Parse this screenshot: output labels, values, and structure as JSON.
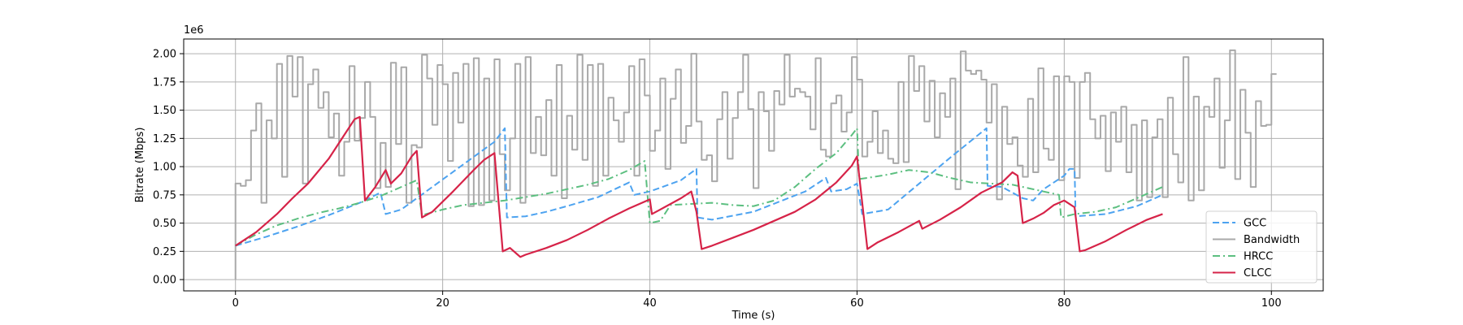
{
  "chart_data": {
    "type": "line",
    "xlabel": "Time (s)",
    "ylabel": "Bitrate (Mbps)",
    "y_offset_label": "1e6",
    "xlim": [
      -5,
      105
    ],
    "ylim": [
      -0.1,
      2.13
    ],
    "x_ticks": [
      0,
      20,
      40,
      60,
      80,
      100
    ],
    "y_ticks": [
      0.0,
      0.25,
      0.5,
      0.75,
      1.0,
      1.25,
      1.5,
      1.75,
      2.0
    ],
    "x_tick_labels": [
      "0",
      "20",
      "40",
      "60",
      "80",
      "100"
    ],
    "y_tick_labels": [
      "0.00",
      "0.25",
      "0.50",
      "0.75",
      "1.00",
      "1.25",
      "1.50",
      "1.75",
      "2.00"
    ],
    "grid": true,
    "legend_position": "bottom-right",
    "series": [
      {
        "name": "GCC",
        "color": "#4da3f0",
        "style": "dashed",
        "x": [
          0,
          3,
          6,
          9,
          12,
          14,
          14.5,
          16,
          19,
          22,
          25,
          26,
          26.2,
          28,
          30,
          32,
          35,
          38,
          38.5,
          40,
          43,
          44.5,
          44.6,
          46,
          50,
          55,
          57,
          57.5,
          59,
          60,
          60.5,
          63,
          66,
          69,
          72.5,
          72.6,
          74,
          76,
          77,
          78,
          80,
          80.5,
          81,
          81.1,
          84,
          87,
          89.5
        ],
        "y": [
          0.3,
          0.38,
          0.47,
          0.57,
          0.68,
          0.77,
          0.58,
          0.62,
          0.82,
          1.02,
          1.22,
          1.34,
          0.55,
          0.56,
          0.6,
          0.65,
          0.73,
          0.86,
          0.75,
          0.78,
          0.88,
          0.98,
          0.55,
          0.53,
          0.6,
          0.78,
          0.9,
          0.78,
          0.8,
          0.85,
          0.58,
          0.62,
          0.85,
          1.08,
          1.34,
          0.83,
          0.82,
          0.72,
          0.7,
          0.8,
          0.92,
          0.98,
          0.98,
          0.56,
          0.58,
          0.65,
          0.75
        ]
      },
      {
        "name": "Bandwidth",
        "color": "#a9a9a9",
        "style": "step",
        "x": [
          0,
          0.5,
          1,
          1.5,
          2,
          2.5,
          3,
          3.5,
          4,
          4.5,
          5,
          5.5,
          6,
          6.5,
          7,
          7.5,
          8,
          8.5,
          9,
          9.5,
          10,
          10.5,
          11,
          11.5,
          12,
          12.5,
          13,
          13.5,
          14,
          14.5,
          15,
          15.5,
          16,
          16.5,
          17,
          17.5,
          18,
          18.5,
          19,
          19.5,
          20,
          20.5,
          21,
          21.5,
          22,
          22.5,
          23,
          23.5,
          24,
          24.5,
          25,
          25.5,
          26,
          26.5,
          27,
          27.5,
          28,
          28.5,
          29,
          29.5,
          30,
          30.5,
          31,
          31.5,
          32,
          32.5,
          33,
          33.5,
          34,
          34.5,
          35,
          35.5,
          36,
          36.5,
          37,
          37.5,
          38,
          38.5,
          39,
          39.5,
          40,
          40.5,
          41,
          41.5,
          42,
          42.5,
          43,
          43.5,
          44,
          44.5,
          45,
          45.5,
          46,
          46.5,
          47,
          47.5,
          48,
          48.5,
          49,
          49.5,
          50,
          50.5,
          51,
          51.5,
          52,
          52.5,
          53,
          53.5,
          54,
          54.5,
          55,
          55.5,
          56,
          56.5,
          57,
          57.5,
          58,
          58.5,
          59,
          59.5,
          60,
          60.5,
          61,
          61.5,
          62,
          62.5,
          63,
          63.5,
          64,
          64.5,
          65,
          65.5,
          66,
          66.5,
          67,
          67.5,
          68,
          68.5,
          69,
          69.5,
          70,
          70.5,
          71,
          71.5,
          72,
          72.5,
          73,
          73.5,
          74,
          74.5,
          75,
          75.5,
          76,
          76.5,
          77,
          77.5,
          78,
          78.5,
          79,
          79.5,
          80,
          80.5,
          81,
          81.5,
          82,
          82.5,
          83,
          83.5,
          84,
          84.5,
          85,
          85.5,
          86,
          86.5,
          87,
          87.5,
          88,
          88.5,
          89,
          89.5,
          90,
          90.5,
          91,
          91.5,
          92,
          92.5,
          93,
          93.5,
          94,
          94.5,
          95,
          95.5,
          96,
          96.5,
          97,
          97.5,
          98,
          98.5,
          99,
          99.5,
          100,
          100.5
        ],
        "y": [
          0.85,
          0.83,
          0.88,
          1.32,
          1.56,
          0.68,
          1.41,
          1.25,
          1.91,
          0.91,
          1.98,
          1.62,
          1.97,
          0.85,
          1.73,
          1.86,
          1.52,
          1.66,
          1.26,
          1.47,
          0.92,
          1.22,
          1.89,
          1.23,
          1.43,
          1.75,
          1.44,
          0.81,
          1.21,
          0.82,
          1.92,
          1.2,
          1.88,
          0.68,
          1.19,
          1.17,
          1.99,
          1.78,
          1.37,
          1.9,
          1.73,
          1.05,
          1.83,
          1.39,
          1.91,
          0.65,
          1.96,
          0.66,
          1.78,
          0.7,
          1.95,
          1.11,
          0.79,
          1.25,
          1.91,
          0.68,
          1.97,
          1.12,
          1.44,
          1.1,
          1.59,
          0.92,
          1.9,
          0.72,
          1.45,
          1.15,
          1.99,
          1.06,
          1.9,
          0.83,
          1.91,
          0.92,
          1.61,
          1.41,
          1.22,
          1.48,
          1.89,
          0.92,
          1.95,
          1.63,
          1.14,
          1.32,
          1.78,
          0.98,
          1.6,
          1.86,
          1.21,
          1.36,
          2.0,
          1.4,
          1.06,
          1.1,
          0.87,
          1.42,
          1.66,
          1.07,
          1.43,
          1.66,
          1.99,
          1.51,
          0.81,
          1.66,
          1.49,
          1.14,
          1.67,
          1.55,
          1.99,
          1.62,
          1.69,
          1.66,
          1.62,
          1.33,
          1.96,
          1.15,
          1.09,
          1.56,
          1.63,
          1.31,
          1.48,
          1.97,
          1.77,
          1.09,
          1.22,
          1.49,
          1.12,
          1.32,
          1.07,
          1.03,
          1.75,
          1.04,
          1.98,
          1.67,
          1.89,
          1.4,
          1.76,
          1.26,
          1.65,
          1.44,
          1.78,
          0.8,
          2.02,
          1.85,
          1.82,
          1.85,
          1.77,
          1.39,
          1.73,
          0.71,
          1.53,
          1.2,
          1.26,
          1.01,
          0.91,
          1.6,
          0.95,
          1.87,
          1.16,
          1.06,
          1.8,
          0.88,
          1.8,
          1.75,
          0.9,
          1.75,
          1.83,
          1.42,
          1.25,
          1.45,
          0.96,
          1.48,
          1.22,
          1.53,
          0.95,
          1.37,
          0.7,
          1.41,
          0.73,
          1.26,
          1.42,
          0.73,
          1.61,
          1.11,
          0.86,
          1.97,
          0.7,
          1.62,
          0.79,
          1.53,
          1.44,
          1.78,
          0.99,
          1.41,
          2.03,
          0.89,
          1.68,
          1.3,
          0.82,
          1.58,
          1.36,
          1.37,
          1.82,
          1.82
        ]
      },
      {
        "name": "HRCC",
        "color": "#5cbf80",
        "style": "dashdot",
        "x": [
          0,
          2,
          4,
          6,
          8,
          10,
          12,
          14,
          16,
          17.5,
          18,
          20,
          22,
          24,
          26,
          28,
          30,
          32,
          34,
          36,
          38,
          39.5,
          40,
          41,
          42,
          44,
          46,
          48,
          50,
          52,
          54,
          56,
          58,
          59.5,
          60,
          60.2,
          61,
          63,
          65,
          67,
          69,
          71,
          73,
          75,
          77,
          79.5,
          79.7,
          81,
          83,
          85,
          87,
          89.5
        ],
        "y": [
          0.3,
          0.4,
          0.48,
          0.54,
          0.59,
          0.63,
          0.68,
          0.74,
          0.82,
          0.88,
          0.57,
          0.62,
          0.66,
          0.68,
          0.7,
          0.73,
          0.76,
          0.8,
          0.84,
          0.89,
          0.97,
          1.05,
          0.5,
          0.52,
          0.66,
          0.67,
          0.68,
          0.66,
          0.65,
          0.7,
          0.82,
          0.98,
          1.12,
          1.28,
          1.34,
          0.89,
          0.9,
          0.93,
          0.97,
          0.95,
          0.9,
          0.86,
          0.85,
          0.84,
          0.8,
          0.75,
          0.55,
          0.58,
          0.6,
          0.64,
          0.72,
          0.82
        ]
      },
      {
        "name": "CLCC",
        "color": "#d62348",
        "style": "solid",
        "x": [
          0,
          2,
          4,
          5.5,
          7,
          9,
          10.5,
          11.5,
          12,
          12.5,
          13.5,
          14.5,
          15,
          16,
          17,
          17.5,
          18,
          19,
          21,
          23,
          24,
          25,
          25.8,
          26.5,
          27.5,
          28,
          30,
          32,
          34,
          36,
          38,
          40,
          40.2,
          41,
          43,
          44,
          44.5,
          45,
          46,
          48,
          50,
          52,
          54,
          56,
          58,
          59.5,
          60,
          61,
          62,
          64,
          66,
          66.3,
          68,
          70,
          72,
          74,
          75,
          75.5,
          76,
          77,
          78,
          79,
          80,
          81,
          81.5,
          82,
          84,
          86,
          88,
          89.5
        ],
        "y": [
          0.3,
          0.42,
          0.58,
          0.72,
          0.85,
          1.07,
          1.28,
          1.42,
          1.44,
          0.7,
          0.82,
          0.97,
          0.85,
          0.94,
          1.09,
          1.14,
          0.55,
          0.6,
          0.78,
          0.97,
          1.06,
          1.12,
          0.25,
          0.28,
          0.2,
          0.22,
          0.28,
          0.35,
          0.44,
          0.54,
          0.63,
          0.71,
          0.58,
          0.62,
          0.72,
          0.78,
          0.6,
          0.27,
          0.3,
          0.37,
          0.44,
          0.52,
          0.6,
          0.71,
          0.86,
          1.01,
          1.09,
          0.27,
          0.33,
          0.42,
          0.52,
          0.45,
          0.53,
          0.64,
          0.77,
          0.86,
          0.95,
          0.92,
          0.5,
          0.54,
          0.59,
          0.66,
          0.7,
          0.64,
          0.25,
          0.26,
          0.34,
          0.44,
          0.53,
          0.58
        ]
      }
    ]
  }
}
